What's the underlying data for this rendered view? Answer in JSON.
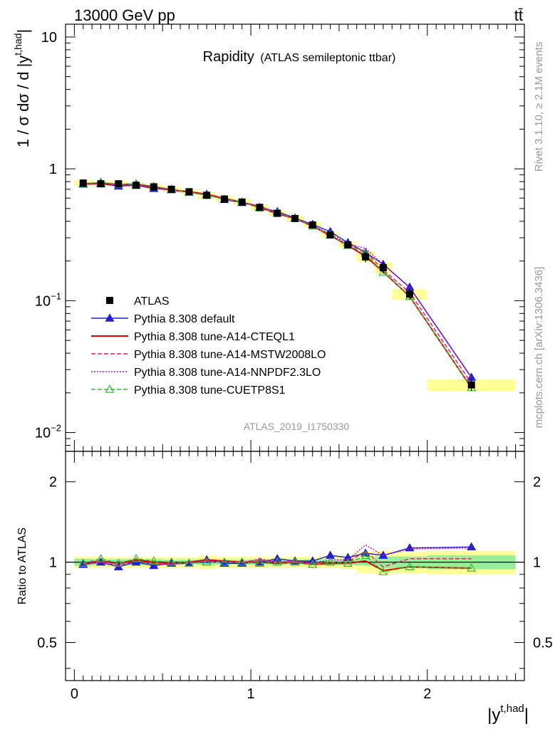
{
  "header": {
    "energy": "13000 GeV pp",
    "process": "tt̄",
    "title_main": "Rapidity",
    "title_sub": "(ATLAS semileptonic ttbar)",
    "analysis": "ATLAS_2019_I1750330",
    "rivet": "Rivet 3.1.10, ≥ 2.1M events",
    "mcplots": "mcplots.cern.ch [arXiv:1306.3436]"
  },
  "axes": {
    "ylabel_main": "1 / σ dσ / d |y",
    "ylabel_main_sup": "t,had",
    "ylabel_main_end": "|",
    "ylabel_ratio": "Ratio to ATLAS",
    "xlabel": "|y",
    "xlabel_sup": "t,had",
    "xlabel_end": "|",
    "main_ticks": [
      {
        "value": 10,
        "label": "10",
        "sup": ""
      },
      {
        "value": 1,
        "label": "1",
        "sup": ""
      },
      {
        "value": 0.1,
        "label": "10",
        "sup": "−1"
      },
      {
        "value": 0.01,
        "label": "10",
        "sup": "−2"
      }
    ],
    "ratio_ticks": [
      {
        "value": 2,
        "label": "2"
      },
      {
        "value": 1,
        "label": "1"
      },
      {
        "value": 0.5,
        "label": "0.5"
      }
    ],
    "x_ticks": [
      {
        "value": 0,
        "label": "0"
      },
      {
        "value": 1,
        "label": "1"
      },
      {
        "value": 2,
        "label": "2"
      }
    ]
  },
  "chart_data": {
    "type": "line",
    "x_range": [
      -0.05,
      2.55
    ],
    "main_y_range": [
      0.0072,
      12.5
    ],
    "main_log": true,
    "ratio_y_range": [
      0.36,
      2.6
    ],
    "ratio_log": true,
    "bin_edges": [
      0.0,
      0.1,
      0.2,
      0.3,
      0.4,
      0.5,
      0.6,
      0.7,
      0.8,
      0.9,
      1.0,
      1.1,
      1.2,
      1.3,
      1.4,
      1.5,
      1.6,
      1.7,
      1.8,
      2.0,
      2.5
    ],
    "x": [
      0.05,
      0.15,
      0.25,
      0.35,
      0.45,
      0.55,
      0.65,
      0.75,
      0.85,
      0.95,
      1.05,
      1.15,
      1.25,
      1.35,
      1.45,
      1.55,
      1.65,
      1.75,
      1.9,
      2.25
    ],
    "legend_position": "lower-left",
    "atlas": {
      "name": "ATLAS",
      "values": [
        0.78,
        0.77,
        0.77,
        0.75,
        0.73,
        0.7,
        0.67,
        0.63,
        0.59,
        0.56,
        0.51,
        0.46,
        0.42,
        0.375,
        0.315,
        0.265,
        0.215,
        0.178,
        0.112,
        0.023
      ],
      "stat_err": [
        0.03,
        0.025,
        0.025,
        0.025,
        0.025,
        0.02,
        0.02,
        0.025,
        0.02,
        0.02,
        0.02,
        0.02,
        0.02,
        0.025,
        0.025,
        0.025,
        0.03,
        0.05,
        0.05,
        0.06
      ],
      "tot_err": [
        0.05,
        0.045,
        0.045,
        0.045,
        0.045,
        0.045,
        0.045,
        0.06,
        0.05,
        0.05,
        0.05,
        0.045,
        0.05,
        0.05,
        0.05,
        0.06,
        0.09,
        0.1,
        0.09,
        0.1
      ]
    },
    "series": [
      {
        "name": "Pythia 8.308 default",
        "color": "#2222cc",
        "dash": "",
        "marker": "triangle-filled",
        "ratio": [
          0.98,
          1.0,
          0.96,
          1.0,
          0.97,
          0.99,
          0.99,
          1.02,
          0.99,
          0.99,
          1.0,
          1.03,
          1.01,
          1.01,
          1.06,
          1.04,
          1.08,
          1.06,
          1.13,
          1.14
        ]
      },
      {
        "name": "Pythia 8.308 tune-A14-CTEQL1",
        "color": "#dd0000",
        "dash": "",
        "marker": "none",
        "ratio": [
          0.99,
          1.01,
          0.99,
          1.02,
          1.0,
          0.99,
          1.0,
          1.02,
          1.01,
          1.0,
          1.0,
          0.99,
          1.0,
          0.98,
          0.99,
          0.99,
          1.01,
          0.93,
          0.96,
          0.95
        ]
      },
      {
        "name": "Pythia 8.308 tune-A14-MSTW2008LO",
        "color": "#ee1166",
        "dash": "6,3",
        "marker": "none",
        "ratio": [
          0.98,
          1.0,
          0.97,
          1.01,
          0.98,
          0.98,
          1.0,
          1.01,
          1.0,
          1.0,
          1.02,
          1.0,
          1.01,
          0.99,
          1.0,
          1.0,
          1.1,
          0.96,
          1.03,
          1.03
        ]
      },
      {
        "name": "Pythia 8.308 tune-A14-NNPDF2.3LO",
        "color": "#cc00cc",
        "dash": "2,2",
        "marker": "none",
        "ratio": [
          0.99,
          1.01,
          0.98,
          1.01,
          0.99,
          0.98,
          0.99,
          1.0,
          1.01,
          0.99,
          1.03,
          1.0,
          1.01,
          0.99,
          1.02,
          1.02,
          1.16,
          1.06,
          1.12,
          1.13
        ]
      },
      {
        "name": "Pythia 8.308 tune-CUETP8S1",
        "color": "#33bb33",
        "dash": "6,3",
        "marker": "triangle-open",
        "ratio": [
          0.99,
          1.03,
          0.99,
          1.03,
          1.01,
          1.0,
          0.99,
          1.0,
          1.0,
          1.0,
          0.99,
          1.0,
          1.0,
          0.98,
          1.0,
          0.99,
          1.06,
          0.92,
          0.96,
          0.95
        ]
      }
    ]
  }
}
